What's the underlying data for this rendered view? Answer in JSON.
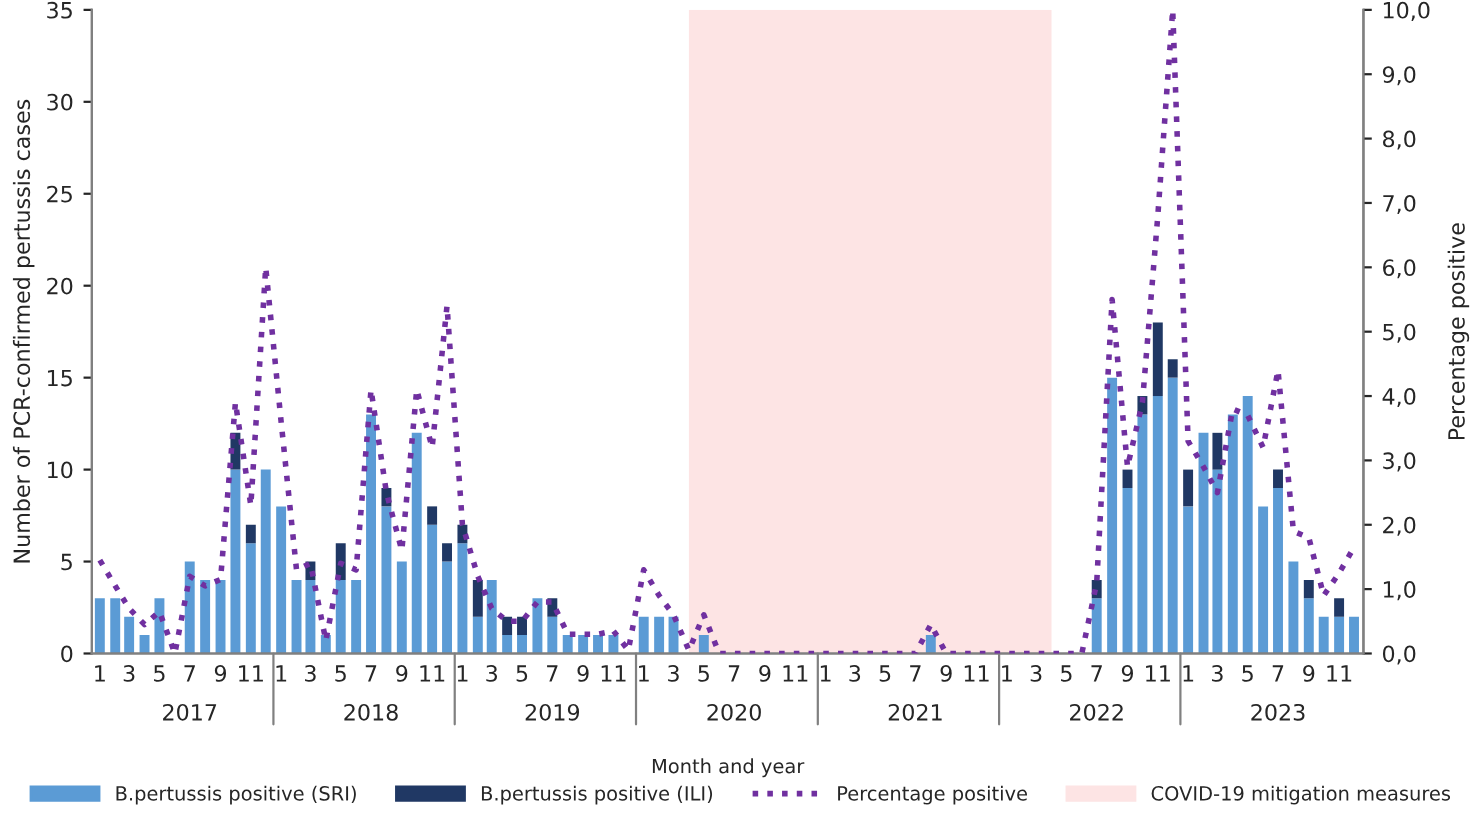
{
  "chart_data": {
    "type": "bar",
    "stacked": true,
    "xlabel": "Month and year",
    "ylabel": "Number of PCR-confirmed pertussis cases",
    "y2label": "Percentage positive",
    "x": [
      "2017-01",
      "2017-02",
      "2017-03",
      "2017-04",
      "2017-05",
      "2017-06",
      "2017-07",
      "2017-08",
      "2017-09",
      "2017-10",
      "2017-11",
      "2017-12",
      "2018-01",
      "2018-02",
      "2018-03",
      "2018-04",
      "2018-05",
      "2018-06",
      "2018-07",
      "2018-08",
      "2018-09",
      "2018-10",
      "2018-11",
      "2018-12",
      "2019-01",
      "2019-02",
      "2019-03",
      "2019-04",
      "2019-05",
      "2019-06",
      "2019-07",
      "2019-08",
      "2019-09",
      "2019-10",
      "2019-11",
      "2019-12",
      "2020-01",
      "2020-02",
      "2020-03",
      "2020-04",
      "2020-05",
      "2020-06",
      "2020-07",
      "2020-08",
      "2020-09",
      "2020-10",
      "2020-11",
      "2020-12",
      "2021-01",
      "2021-02",
      "2021-03",
      "2021-04",
      "2021-05",
      "2021-06",
      "2021-07",
      "2021-08",
      "2021-09",
      "2021-10",
      "2021-11",
      "2021-12",
      "2022-01",
      "2022-02",
      "2022-03",
      "2022-04",
      "2022-05",
      "2022-06",
      "2022-07",
      "2022-08",
      "2022-09",
      "2022-10",
      "2022-11",
      "2022-12",
      "2023-01",
      "2023-02",
      "2023-03",
      "2023-04",
      "2023-05",
      "2023-06",
      "2023-07",
      "2023-08",
      "2023-09",
      "2023-10",
      "2023-11",
      "2023-12"
    ],
    "series": [
      {
        "name": "B.pertussis positive (SRI)",
        "color": "#5b9bd5",
        "values": [
          3,
          3,
          2,
          1,
          3,
          0,
          5,
          4,
          4,
          10,
          6,
          10,
          8,
          4,
          4,
          1,
          4,
          4,
          13,
          8,
          5,
          12,
          7,
          5,
          6,
          2,
          4,
          1,
          1,
          3,
          2,
          1,
          1,
          1,
          1,
          0,
          2,
          2,
          2,
          0,
          1,
          0,
          0,
          0,
          0,
          0,
          0,
          0,
          0,
          0,
          0,
          0,
          0,
          0,
          0,
          1,
          0,
          0,
          0,
          0,
          0,
          0,
          0,
          0,
          0,
          0,
          3,
          15,
          9,
          13,
          14,
          15,
          8,
          12,
          10,
          13,
          14,
          8,
          9,
          5,
          3,
          2,
          2,
          2
        ]
      },
      {
        "name": "B.pertussis positive (ILI)",
        "color": "#203864",
        "values": [
          0,
          0,
          0,
          0,
          0,
          0,
          0,
          0,
          0,
          2,
          1,
          0,
          0,
          0,
          1,
          0,
          2,
          0,
          0,
          1,
          0,
          0,
          1,
          1,
          1,
          2,
          0,
          1,
          1,
          0,
          1,
          0,
          0,
          0,
          0,
          0,
          0,
          0,
          0,
          0,
          0,
          0,
          0,
          0,
          0,
          0,
          0,
          0,
          0,
          0,
          0,
          0,
          0,
          0,
          0,
          0,
          0,
          0,
          0,
          0,
          0,
          0,
          0,
          0,
          0,
          0,
          1,
          0,
          1,
          1,
          4,
          1,
          2,
          0,
          2,
          0,
          0,
          0,
          1,
          0,
          1,
          0,
          1,
          0
        ]
      },
      {
        "name": "Percentage positive",
        "type": "line",
        "axis": "y2",
        "line_style": "dotted",
        "color": "#7030a0",
        "values": [
          1.45,
          1.05,
          0.7,
          0.45,
          0.65,
          0,
          1.2,
          1.05,
          1.15,
          3.9,
          2.3,
          6.0,
          3.6,
          1.3,
          1.4,
          0.2,
          1.4,
          1.3,
          4.1,
          2.5,
          1.6,
          4.1,
          3.2,
          5.4,
          2.0,
          1.2,
          0.7,
          0.5,
          0.5,
          0.8,
          0.8,
          0.3,
          0.3,
          0.3,
          0.35,
          0.05,
          1.3,
          0.9,
          0.6,
          0.05,
          0.6,
          0,
          0,
          0,
          0,
          0,
          0,
          0,
          0,
          0,
          0,
          0,
          0,
          0,
          0,
          0.45,
          0,
          0,
          0,
          0,
          0,
          0,
          0,
          0,
          0,
          0,
          1.1,
          5.5,
          2.9,
          3.9,
          6.8,
          10.0,
          3.3,
          2.9,
          2.5,
          3.8,
          3.7,
          3.2,
          4.4,
          1.9,
          1.8,
          0.9,
          1.25,
          1.65
        ]
      }
    ],
    "bands": [
      {
        "axis": "x",
        "from": "2020-04",
        "to": "2022-04",
        "label": "COVID-19 mitigation measures",
        "color": "#fde4e4"
      }
    ],
    "xlim": [
      "2016-12-16",
      "2023-12-20"
    ],
    "xticks": [
      {
        "value": "2017-01",
        "label": "1"
      },
      {
        "value": "2017-03",
        "label": "3"
      },
      {
        "value": "2017-05",
        "label": "5"
      },
      {
        "value": "2017-07",
        "label": "7"
      },
      {
        "value": "2017-09",
        "label": "9"
      },
      {
        "value": "2017-11",
        "label": "11"
      },
      {
        "value": "2018-01",
        "label": "1"
      },
      {
        "value": "2018-03",
        "label": "3"
      },
      {
        "value": "2018-05",
        "label": "5"
      },
      {
        "value": "2018-07",
        "label": "7"
      },
      {
        "value": "2018-09",
        "label": "9"
      },
      {
        "value": "2018-11",
        "label": "11"
      },
      {
        "value": "2019-01",
        "label": "1"
      },
      {
        "value": "2019-03",
        "label": "3"
      },
      {
        "value": "2019-05",
        "label": "5"
      },
      {
        "value": "2019-07",
        "label": "7"
      },
      {
        "value": "2019-09",
        "label": "9"
      },
      {
        "value": "2019-11",
        "label": "11"
      },
      {
        "value": "2020-01",
        "label": "1"
      },
      {
        "value": "2020-03",
        "label": "3"
      },
      {
        "value": "2020-05",
        "label": "5"
      },
      {
        "value": "2020-07",
        "label": "7"
      },
      {
        "value": "2020-09",
        "label": "9"
      },
      {
        "value": "2020-11",
        "label": "11"
      },
      {
        "value": "2021-01",
        "label": "1"
      },
      {
        "value": "2021-03",
        "label": "3"
      },
      {
        "value": "2021-05",
        "label": "5"
      },
      {
        "value": "2021-07",
        "label": "7"
      },
      {
        "value": "2021-09",
        "label": "9"
      },
      {
        "value": "2021-11",
        "label": "11"
      },
      {
        "value": "2022-01",
        "label": "1"
      },
      {
        "value": "2022-03",
        "label": "3"
      },
      {
        "value": "2022-05",
        "label": "5"
      },
      {
        "value": "2022-07",
        "label": "7"
      },
      {
        "value": "2022-09",
        "label": "9"
      },
      {
        "value": "2022-11",
        "label": "11"
      },
      {
        "value": "2023-01",
        "label": "1"
      },
      {
        "value": "2023-03",
        "label": "3"
      },
      {
        "value": "2023-05",
        "label": "5"
      },
      {
        "value": "2023-07",
        "label": "7"
      },
      {
        "value": "2023-09",
        "label": "9"
      },
      {
        "value": "2023-11",
        "label": "11"
      }
    ],
    "x2lim": [
      "2016-12-16",
      "2023-12-20"
    ],
    "x2ticks": [
      {
        "value": "2017-07-01",
        "label": "2017"
      },
      {
        "value": "2018-07-01",
        "label": "2018"
      },
      {
        "value": "2019-07-01",
        "label": "2019"
      },
      {
        "value": "2020-07-01",
        "label": "2020"
      },
      {
        "value": "2021-07-01",
        "label": "2021"
      },
      {
        "value": "2022-07-01",
        "label": "2022"
      },
      {
        "value": "2023-07-01",
        "label": "2023"
      }
    ],
    "ylim": [
      0,
      35
    ],
    "yticks": [
      0,
      5,
      10,
      15,
      20,
      25,
      30,
      35
    ],
    "y2lim": [
      0,
      10
    ],
    "y2ticks": [
      {
        "value": 0,
        "label": "0,0"
      },
      {
        "value": 1,
        "label": "1,0"
      },
      {
        "value": 2,
        "label": "2,0"
      },
      {
        "value": 3,
        "label": "3,0"
      },
      {
        "value": 4,
        "label": "4,0"
      },
      {
        "value": 5,
        "label": "5,0"
      },
      {
        "value": 6,
        "label": "6,0"
      },
      {
        "value": 7,
        "label": "7,0"
      },
      {
        "value": 8,
        "label": "8,0"
      },
      {
        "value": 9,
        "label": "9,0"
      },
      {
        "value": 10,
        "label": "10,0"
      }
    ],
    "legend": "bottom"
  }
}
